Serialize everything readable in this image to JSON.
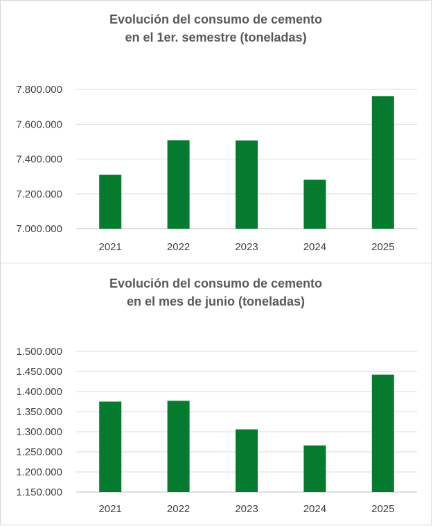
{
  "chart_data": [
    {
      "type": "bar",
      "title_lines": [
        "Evolución del consumo de cemento",
        "en el 1er. semestre (toneladas)"
      ],
      "categories": [
        "2021",
        "2022",
        "2023",
        "2024",
        "2025"
      ],
      "values": [
        7310000,
        7508000,
        7507000,
        7281000,
        7761000
      ],
      "ylim": [
        7000000,
        7800000
      ],
      "yticks": [
        7000000,
        7200000,
        7400000,
        7600000,
        7800000
      ],
      "ytick_labels": [
        "7.000.000",
        "7.200.000",
        "7.400.000",
        "7.600.000",
        "7.800.000"
      ],
      "grid": true,
      "bar_color": "#067a2e"
    },
    {
      "type": "bar",
      "title_lines": [
        "Evolución del consumo de cemento",
        "en el mes de junio (toneladas)"
      ],
      "categories": [
        "2021",
        "2022",
        "2023",
        "2024",
        "2025"
      ],
      "values": [
        1375000,
        1377000,
        1306000,
        1266000,
        1442000
      ],
      "ylim": [
        1150000,
        1500000
      ],
      "yticks": [
        1150000,
        1200000,
        1250000,
        1300000,
        1350000,
        1400000,
        1450000,
        1500000
      ],
      "ytick_labels": [
        "1.150.000",
        "1.200.000",
        "1.250.000",
        "1.300.000",
        "1.350.000",
        "1.400.000",
        "1.450.000",
        "1.500.000"
      ],
      "grid": true,
      "bar_color": "#067a2e"
    }
  ]
}
